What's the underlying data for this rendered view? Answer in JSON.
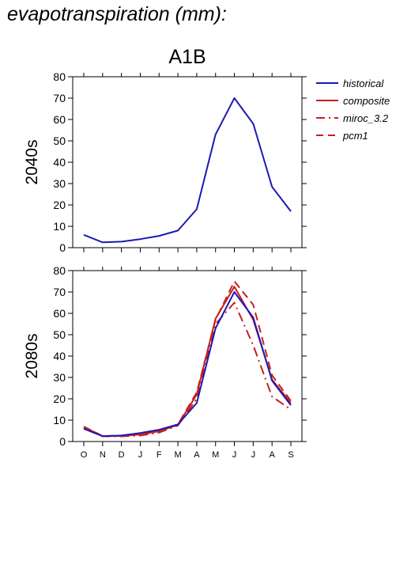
{
  "page_title": "evapotranspiration (mm):",
  "chart_data": [
    {
      "type": "line",
      "title": "A1B",
      "ylabel": "2040s",
      "categories": [
        "O",
        "N",
        "D",
        "J",
        "F",
        "M",
        "A",
        "M",
        "J",
        "J",
        "A",
        "S"
      ],
      "ylim": [
        0,
        80
      ],
      "yticks": [
        0,
        10,
        20,
        30,
        40,
        50,
        60,
        70,
        80
      ],
      "grid": false,
      "series": [
        {
          "name": "historical",
          "color": "#1a1ab4",
          "dash": "solid",
          "values": [
            6,
            2.5,
            2.8,
            4,
            5.5,
            8,
            18,
            53,
            70,
            58,
            28.5,
            17
          ]
        }
      ]
    },
    {
      "type": "line",
      "ylabel": "2080s",
      "categories": [
        "O",
        "N",
        "D",
        "J",
        "F",
        "M",
        "A",
        "M",
        "J",
        "J",
        "A",
        "S"
      ],
      "ylim": [
        0,
        80
      ],
      "yticks": [
        0,
        10,
        20,
        30,
        40,
        50,
        60,
        70,
        80
      ],
      "grid": false,
      "series": [
        {
          "name": "historical",
          "color": "#1a1ab4",
          "dash": "solid",
          "values": [
            6,
            2.5,
            2.8,
            4,
            5.5,
            8,
            18,
            53,
            70,
            58,
            28.5,
            17
          ]
        },
        {
          "name": "composite",
          "color": "#c81e1e",
          "dash": "solid",
          "values": [
            6.8,
            2.5,
            2.6,
            3.3,
            4.8,
            7.8,
            22,
            57.5,
            72.5,
            57,
            29,
            18
          ]
        },
        {
          "name": "miroc_3.2",
          "color": "#c81e1e",
          "dash": "dashdot",
          "values": [
            6.5,
            2.5,
            2.4,
            2.8,
            4.2,
            7.5,
            20,
            55,
            65,
            45,
            21,
            15
          ]
        },
        {
          "name": "pcm1",
          "color": "#c81e1e",
          "dash": "dashed",
          "values": [
            7,
            2.6,
            2.7,
            3.6,
            5,
            8,
            23,
            57,
            75,
            64,
            31,
            19
          ]
        }
      ]
    }
  ],
  "legend": {
    "placement": "top-right",
    "entries": [
      {
        "name": "historical",
        "color": "#1a1ab4",
        "dash": "solid"
      },
      {
        "name": "composite",
        "color": "#c81e1e",
        "dash": "solid"
      },
      {
        "name": "miroc_3.2",
        "color": "#c81e1e",
        "dash": "dashdot"
      },
      {
        "name": "pcm1",
        "color": "#c81e1e",
        "dash": "dashed"
      }
    ]
  }
}
